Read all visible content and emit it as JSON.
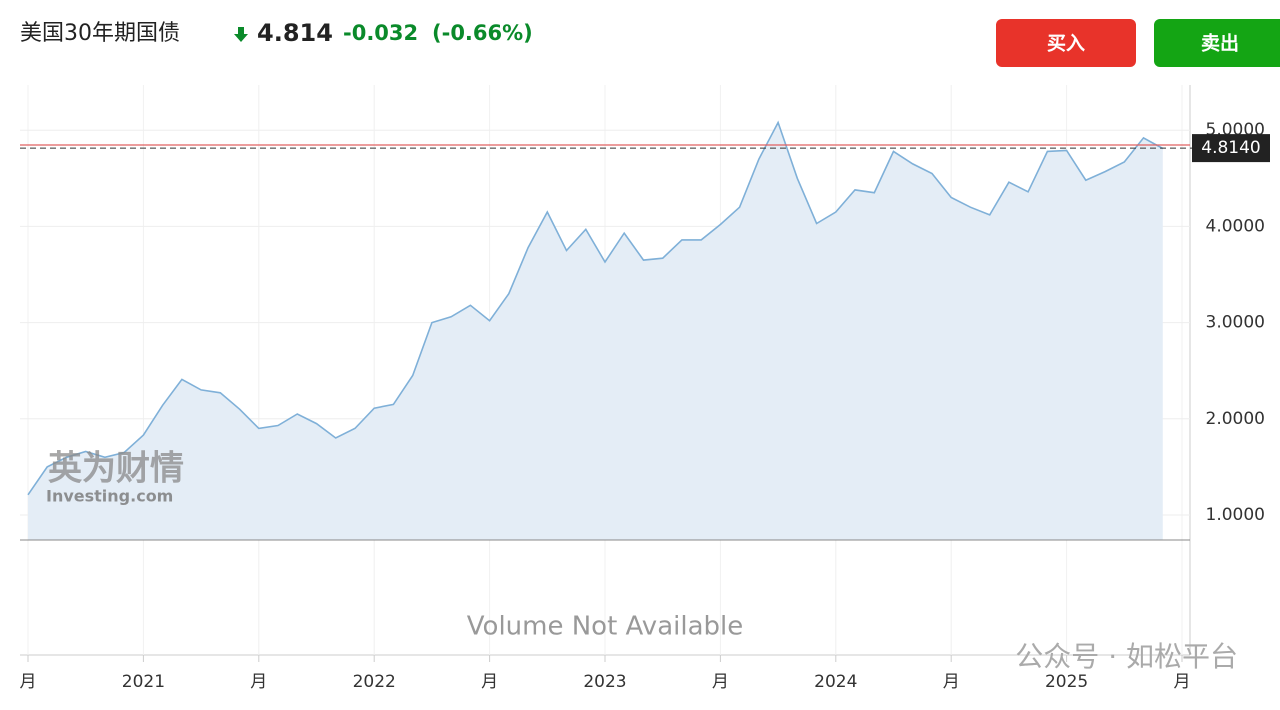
{
  "header": {
    "title": "美国30年期国债",
    "price": "4.814",
    "change": "-0.032",
    "change_pct": "(-0.66%)",
    "buy": "买入",
    "sell": "卖出"
  },
  "watermark": {
    "cn": "英为财情",
    "en": "Investing.com",
    "footer": "公众号 · 如松平台"
  },
  "chart_data": {
    "type": "area",
    "values": [
      1.21,
      1.5,
      1.6,
      1.66,
      1.6,
      1.65,
      1.83,
      2.14,
      2.41,
      2.3,
      2.27,
      2.1,
      1.9,
      1.93,
      2.05,
      1.95,
      1.8,
      1.9,
      2.11,
      2.15,
      2.45,
      3.0,
      3.06,
      3.18,
      3.02,
      3.3,
      3.78,
      4.15,
      3.75,
      3.97,
      3.63,
      3.93,
      3.65,
      3.67,
      3.86,
      3.86,
      4.02,
      4.2,
      4.7,
      5.08,
      4.5,
      4.03,
      4.15,
      4.38,
      4.35,
      4.78,
      4.65,
      4.55,
      4.3,
      4.2,
      4.12,
      4.46,
      4.36,
      4.78,
      4.79,
      4.48,
      4.57,
      4.67,
      4.92,
      4.81
    ],
    "color": "#7fb0d8",
    "fill": "#e4edf6",
    "ylim": [
      0.74,
      5.47
    ],
    "yticks": [
      {
        "value": 1,
        "label": "1.0000"
      },
      {
        "value": 2,
        "label": "2.0000"
      },
      {
        "value": 3,
        "label": "3.0000"
      },
      {
        "value": 4,
        "label": "4.0000"
      },
      {
        "value": 5,
        "label": "5.0000"
      }
    ],
    "xtick_labels": [
      "月",
      "2021",
      "月",
      "2022",
      "月",
      "2023",
      "月",
      "2024",
      "月",
      "2025",
      "月"
    ],
    "current": {
      "value": 4.814,
      "label": "4.8140"
    },
    "reference_line": 4.846,
    "volume_note": "Volume Not Available",
    "grid": true
  }
}
